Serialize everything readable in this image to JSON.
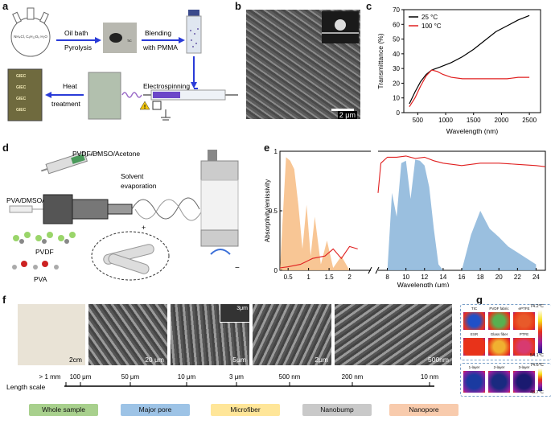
{
  "panels": {
    "a": {
      "label": "a",
      "flask_text": "NH₄Cl, C₆H₁₂O₆ H₂O",
      "step1_top": "Oil bath",
      "step1_bottom": "Pyrolysis",
      "tic_label": "TIC",
      "step2_top": "Blending",
      "step2_bottom": "with PMMA",
      "step3": "Electrospinning",
      "step4_top": "Heat",
      "step4_bottom": "treatment",
      "fabric_text": "GIEC"
    },
    "b": {
      "label": "b",
      "scale": "2 μm"
    },
    "c": {
      "label": "c"
    },
    "d": {
      "label": "d",
      "pvdf_solution": "PVDF/DMSO/Acetone",
      "pva_solution": "PVA/DMSO/Ethanol",
      "solvent": "Solvent",
      "evaporation": "evaporation",
      "pvdf": "PVDF",
      "pva": "PVA",
      "plus": "+",
      "minus": "−"
    },
    "e": {
      "label": "e"
    },
    "f": {
      "label": "f",
      "scales": [
        "2cm",
        "20 μm",
        "5μm",
        "2μm",
        "500nm"
      ],
      "inset_scale": "3μm",
      "ticks": [
        "> 1 mm",
        "100 μm",
        "50 μm",
        "10 μm",
        "3 μm",
        "500 nm",
        "200 nm",
        "10 nm"
      ],
      "axis_label": "Length scale",
      "categories": [
        {
          "name": "Whole sample",
          "color": "#a8d08d"
        },
        {
          "name": "Major pore",
          "color": "#9dc3e6"
        },
        {
          "name": "Microfiber",
          "color": "#ffe699"
        },
        {
          "name": "Nanobump",
          "color": "#c9c9c9"
        },
        {
          "name": "Nanopore",
          "color": "#f8cbad"
        }
      ]
    },
    "g": {
      "label": "g",
      "top_labels": [
        "TIC",
        "PVDF fabric",
        "ePTFE",
        "ESR",
        "Glass fiber",
        "PTFE"
      ],
      "top_max": "74.2°C",
      "top_min": "54.1°C",
      "bottom_labels": [
        "1-layer",
        "2-layer",
        "3-layer"
      ],
      "bottom_max": "74.6°C",
      "bottom_min": "45.7°C"
    }
  },
  "chart_data": [
    {
      "panel": "c",
      "type": "line",
      "xlabel": "Wavelength (nm)",
      "ylabel": "Transmittance (%)",
      "xlim": [
        250,
        2700
      ],
      "ylim": [
        0,
        70
      ],
      "xticks": [
        500,
        1000,
        1500,
        2000,
        2500
      ],
      "yticks": [
        0,
        10,
        20,
        30,
        40,
        50,
        60,
        70
      ],
      "legend_position": "top-left",
      "series": [
        {
          "name": "25 °C",
          "color": "#000000",
          "x": [
            350,
            450,
            550,
            650,
            750,
            900,
            1100,
            1300,
            1500,
            1700,
            1900,
            2100,
            2300,
            2500
          ],
          "y": [
            6,
            14,
            21,
            26,
            29,
            31,
            34,
            38,
            43,
            49,
            55,
            59,
            63,
            66
          ]
        },
        {
          "name": "100 °C",
          "color": "#e02020",
          "x": [
            350,
            450,
            550,
            650,
            750,
            850,
            950,
            1100,
            1300,
            1500,
            1700,
            1900,
            2100,
            2300,
            2500
          ],
          "y": [
            4,
            10,
            18,
            25,
            29,
            28,
            26,
            24,
            23,
            23,
            23,
            23,
            23,
            24,
            24
          ]
        }
      ]
    },
    {
      "panel": "e",
      "type": "area",
      "xlabel": "Wavelength (μm)",
      "ylabel": "Absorptivity/emissivity",
      "ylim": [
        0,
        1
      ],
      "yticks": [
        0,
        0.5,
        1
      ],
      "xticks_left": [
        0.5,
        1,
        1.5,
        2
      ],
      "xticks_right": [
        8,
        10,
        12,
        14,
        16,
        18,
        20,
        22,
        24
      ],
      "series": [
        {
          "name": "",
          "color": "#f7c089",
          "x": [
            0.3,
            0.45,
            0.55,
            0.65,
            0.75,
            0.85,
            0.95,
            1.05,
            1.15,
            1.3,
            1.45,
            1.6,
            1.8,
            2.0
          ],
          "y": [
            0.0,
            0.95,
            0.92,
            0.85,
            0.55,
            0.18,
            0.55,
            0.12,
            0.45,
            0.05,
            0.25,
            0.02,
            0.12,
            0.0
          ]
        },
        {
          "name": "",
          "color": "#8fb8dc",
          "x": [
            8,
            8.5,
            9,
            9.5,
            10,
            10.5,
            11,
            11.5,
            12,
            12.5,
            13,
            13.5,
            14,
            16,
            17,
            18,
            19,
            20,
            21,
            22,
            23,
            24
          ],
          "y": [
            0.0,
            0.65,
            0.45,
            0.9,
            0.92,
            0.6,
            0.93,
            0.92,
            0.88,
            0.7,
            0.35,
            0.05,
            0.0,
            0.0,
            0.3,
            0.5,
            0.35,
            0.28,
            0.2,
            0.15,
            0.1,
            0.05
          ]
        },
        {
          "name": "",
          "color": "#e02020",
          "x": [
            0.3,
            0.5,
            0.8,
            1.1,
            1.4,
            1.6,
            1.8,
            2.0,
            2.2,
            7.0,
            7.3,
            8,
            9,
            10,
            11,
            12,
            13,
            14,
            16,
            18,
            20,
            22,
            24,
            25
          ],
          "y": [
            0.02,
            0.03,
            0.05,
            0.1,
            0.12,
            0.18,
            0.1,
            0.2,
            0.18,
            0.65,
            0.9,
            0.95,
            0.95,
            0.96,
            0.94,
            0.95,
            0.92,
            0.9,
            0.88,
            0.9,
            0.9,
            0.89,
            0.88,
            0.87
          ]
        }
      ]
    }
  ]
}
